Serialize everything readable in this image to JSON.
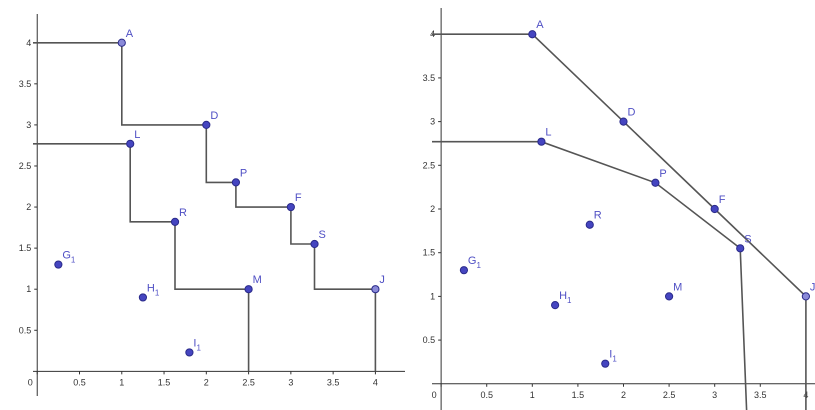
{
  "chart_data": [
    {
      "type": "scatter",
      "variant": "staircase",
      "xlim": [
        -0.05,
        4.35
      ],
      "ylim": [
        -0.3,
        4.35
      ],
      "xticks": [
        0,
        0.5,
        1,
        1.5,
        2,
        2.5,
        3,
        3.5,
        4
      ],
      "yticks": [
        0.5,
        1,
        1.5,
        2,
        2.5,
        3,
        3.5,
        4
      ],
      "xtick_labels": [
        "0",
        "0.5",
        "1",
        "1.5",
        "2",
        "2.5",
        "3",
        "3.5",
        "4"
      ],
      "ytick_labels": [
        "0.5",
        "1",
        "1.5",
        "2",
        "2.5",
        "3",
        "3.5",
        "4"
      ],
      "points": [
        {
          "name": "A",
          "sub": "",
          "x": 1,
          "y": 4,
          "hollow": true
        },
        {
          "name": "D",
          "sub": "",
          "x": 2,
          "y": 3
        },
        {
          "name": "P",
          "sub": "",
          "x": 2.35,
          "y": 2.3
        },
        {
          "name": "F",
          "sub": "",
          "x": 3,
          "y": 2
        },
        {
          "name": "S",
          "sub": "",
          "x": 3.28,
          "y": 1.55
        },
        {
          "name": "J",
          "sub": "",
          "x": 4,
          "y": 1,
          "hollow": true
        },
        {
          "name": "L",
          "sub": "",
          "x": 1.1,
          "y": 2.77
        },
        {
          "name": "R",
          "sub": "",
          "x": 1.63,
          "y": 1.82
        },
        {
          "name": "M",
          "sub": "",
          "x": 2.5,
          "y": 1
        },
        {
          "name": "G",
          "sub": "1",
          "x": 0.25,
          "y": 1.3
        },
        {
          "name": "H",
          "sub": "1",
          "x": 1.25,
          "y": 0.9
        },
        {
          "name": "I",
          "sub": "1",
          "x": 1.8,
          "y": 0.23
        }
      ],
      "frontiers": [
        {
          "path": [
            [
              -0.05,
              4
            ],
            [
              1,
              4
            ],
            [
              1,
              3
            ],
            [
              2,
              3
            ],
            [
              2,
              2.3
            ],
            [
              2.35,
              2.3
            ],
            [
              2.35,
              2
            ],
            [
              3,
              2
            ],
            [
              3,
              1.55
            ],
            [
              3.28,
              1.55
            ],
            [
              3.28,
              1
            ],
            [
              4,
              1
            ],
            [
              4,
              0
            ]
          ]
        },
        {
          "path": [
            [
              -0.05,
              2.77
            ],
            [
              1.1,
              2.77
            ],
            [
              1.1,
              1.82
            ],
            [
              1.63,
              1.82
            ],
            [
              1.63,
              1
            ],
            [
              2.5,
              1
            ],
            [
              2.5,
              0
            ]
          ]
        }
      ]
    },
    {
      "type": "scatter",
      "variant": "convex",
      "xlim": [
        -0.1,
        4.1
      ],
      "ylim": [
        -0.3,
        4.3
      ],
      "xticks": [
        0,
        0.5,
        1,
        1.5,
        2,
        2.5,
        3,
        3.5,
        4
      ],
      "yticks": [
        0.5,
        1,
        1.5,
        2,
        2.5,
        3,
        3.5,
        4
      ],
      "xtick_labels": [
        "0",
        "0.5",
        "1",
        "1.5",
        "2",
        "2.5",
        "3",
        "3.5",
        "4"
      ],
      "ytick_labels": [
        "0.5",
        "1",
        "1.5",
        "2",
        "2.5",
        "3",
        "3.5",
        "4"
      ],
      "points": [
        {
          "name": "A",
          "sub": "",
          "x": 1,
          "y": 4
        },
        {
          "name": "D",
          "sub": "",
          "x": 2,
          "y": 3
        },
        {
          "name": "F",
          "sub": "",
          "x": 3,
          "y": 2
        },
        {
          "name": "J",
          "sub": "",
          "x": 4,
          "y": 1,
          "hollow": true
        },
        {
          "name": "L",
          "sub": "",
          "x": 1.1,
          "y": 2.77
        },
        {
          "name": "P",
          "sub": "",
          "x": 2.35,
          "y": 2.3
        },
        {
          "name": "S",
          "sub": "",
          "x": 3.28,
          "y": 1.55
        },
        {
          "name": "R",
          "sub": "",
          "x": 1.63,
          "y": 1.82
        },
        {
          "name": "M",
          "sub": "",
          "x": 2.5,
          "y": 1
        },
        {
          "name": "G",
          "sub": "1",
          "x": 0.25,
          "y": 1.3
        },
        {
          "name": "H",
          "sub": "1",
          "x": 1.25,
          "y": 0.9
        },
        {
          "name": "I",
          "sub": "1",
          "x": 1.8,
          "y": 0.23
        }
      ],
      "frontiers": [
        {
          "path": [
            [
              -0.1,
              4
            ],
            [
              1,
              4
            ],
            [
              2,
              3
            ],
            [
              3,
              2
            ],
            [
              4,
              1
            ],
            [
              4,
              -0.3
            ]
          ]
        },
        {
          "path": [
            [
              -0.1,
              2.77
            ],
            [
              1.1,
              2.77
            ],
            [
              2.35,
              2.3
            ],
            [
              3.28,
              1.55
            ],
            [
              3.35,
              -0.3
            ]
          ]
        }
      ]
    }
  ]
}
